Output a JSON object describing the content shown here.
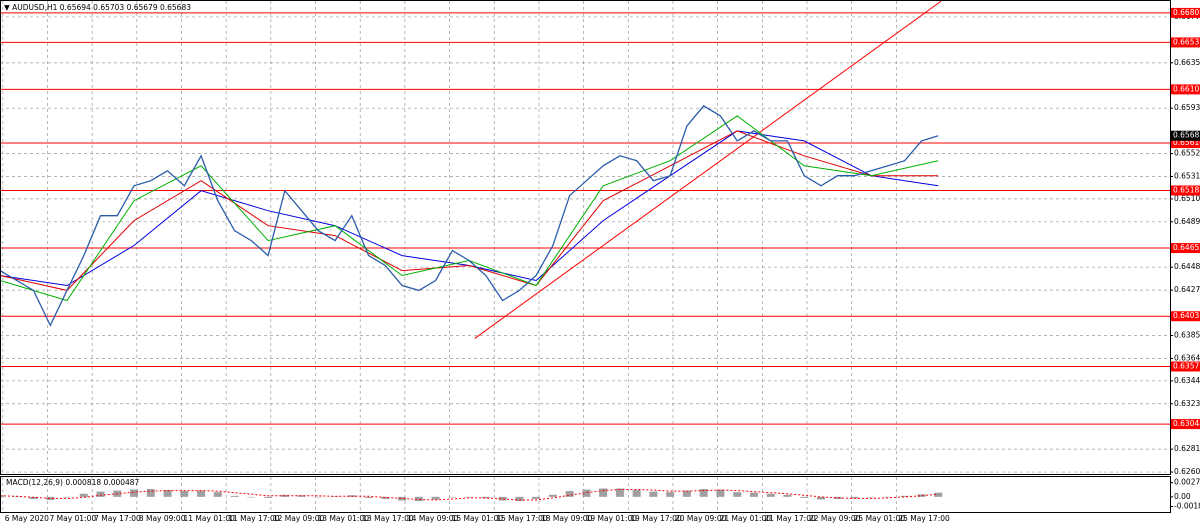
{
  "chart_data": [
    {
      "type": "line",
      "title": "AUDUSD,H1",
      "ohlc": [
        0.65694,
        0.65703,
        0.65679,
        0.65683
      ],
      "x": [
        0,
        6,
        12,
        18,
        24,
        30,
        36,
        42,
        48,
        54,
        60,
        66,
        72,
        78,
        84,
        90,
        96,
        102,
        108,
        114,
        120,
        126,
        132,
        138,
        144,
        150,
        156,
        162,
        168,
        174,
        180,
        186,
        192,
        198,
        204,
        210,
        216,
        222,
        228,
        234,
        240,
        246,
        252,
        258,
        264,
        270,
        276,
        282,
        288,
        294,
        300,
        306,
        312,
        318,
        324,
        330,
        336
      ],
      "series": [
        {
          "color": "#2a5caa",
          "values": [
            0.64449,
            0.64358,
            0.64267,
            0.63947,
            0.64267,
            0.64586,
            0.64951,
            0.64951,
            0.65225,
            0.65271,
            0.65362,
            0.65225,
            0.65499,
            0.65088,
            0.64814,
            0.64723,
            0.64586,
            0.6518,
            0.64997,
            0.64814,
            0.64723,
            0.64951,
            0.64586,
            0.64495,
            0.64312,
            0.64267,
            0.64358,
            0.64632,
            0.64541,
            0.64404,
            0.64175,
            0.64267,
            0.64404,
            0.64678,
            0.65134,
            0.65271,
            0.65408,
            0.65499,
            0.65454,
            0.65271,
            0.65317,
            0.65773,
            0.65956,
            0.65864,
            0.65636,
            0.65727,
            0.65636,
            0.65636,
            0.65317,
            0.65225,
            0.65317,
            0.65317,
            0.65362,
            0.65408,
            0.65454,
            0.65636,
            0.65683
          ]
        },
        {
          "color": "#00b000",
          "x": [
            0,
            24,
            48,
            72,
            96,
            120,
            144,
            168,
            192,
            216,
            240,
            264,
            288,
            312,
            336
          ],
          "values": [
            0.64358,
            0.64175,
            0.65088,
            0.65408,
            0.64723,
            0.6486,
            0.64404,
            0.64541,
            0.64312,
            0.65225,
            0.65454,
            0.65864,
            0.65408,
            0.65317,
            0.65454
          ]
        },
        {
          "color": "#e00000",
          "x": [
            0,
            24,
            48,
            72,
            96,
            120,
            144,
            168,
            192,
            216,
            240,
            264,
            288,
            312,
            336
          ],
          "values": [
            0.64404,
            0.64267,
            0.64906,
            0.65271,
            0.6486,
            0.64769,
            0.64449,
            0.64495,
            0.64312,
            0.65088,
            0.65408,
            0.65727,
            0.65499,
            0.65317,
            0.65317
          ]
        },
        {
          "color": "#0000e0",
          "x": [
            0,
            24,
            48,
            72,
            96,
            120,
            144,
            168,
            192,
            216,
            240,
            264,
            288,
            312,
            336
          ],
          "values": [
            0.64404,
            0.64312,
            0.64678,
            0.6518,
            0.64997,
            0.6486,
            0.64586,
            0.64495,
            0.64358,
            0.64906,
            0.65317,
            0.65727,
            0.65636,
            0.65317,
            0.65225
          ]
        }
      ],
      "trendline": {
        "color": "#ff0000",
        "x": [
          170,
          337
        ],
        "values": [
          0.63828,
          0.66914
        ]
      },
      "levels": [
        0.66807,
        0.66537,
        0.66107,
        0.65616,
        0.65182,
        0.64655,
        0.64031,
        0.63571,
        0.63044
      ],
      "level_color": "#ff0000",
      "current_price": 0.65683,
      "xlim": [
        0,
        419
      ],
      "ylim": [
        0.62578,
        0.66916
      ],
      "xticks": [
        {
          "value": 1,
          "label": "6 May 2020"
        },
        {
          "value": 17,
          "label": "7 May 01:00"
        },
        {
          "value": 33,
          "label": "7 May 17:00"
        },
        {
          "value": 49,
          "label": "8 May 09:00"
        },
        {
          "value": 65,
          "label": "11 May 01:00"
        },
        {
          "value": 81,
          "label": "11 May 17:00"
        },
        {
          "value": 97,
          "label": "12 May 09:00"
        },
        {
          "value": 113,
          "label": "13 May 01:00"
        },
        {
          "value": 129,
          "label": "13 May 17:00"
        },
        {
          "value": 145,
          "label": "14 May 09:00"
        },
        {
          "value": 161,
          "label": "15 May 01:00"
        },
        {
          "value": 177,
          "label": "15 May 17:00"
        },
        {
          "value": 193,
          "label": "18 May 09:00"
        },
        {
          "value": 209,
          "label": "19 May 01:00"
        },
        {
          "value": 225,
          "label": "19 May 17:00"
        },
        {
          "value": 241,
          "label": "20 May 09:00"
        },
        {
          "value": 257,
          "label": "21 May 01:00"
        },
        {
          "value": 273,
          "label": "21 May 17:00"
        },
        {
          "value": 289,
          "label": "22 May 09:00"
        },
        {
          "value": 305,
          "label": "25 May 01:00"
        },
        {
          "value": 321,
          "label": "25 May 17:00"
        }
      ],
      "yticks": [
        {
          "value": 0.6677,
          "label": "0.66770"
        },
        {
          "value": 0.6635,
          "label": "0.66350"
        },
        {
          "value": 0.65935,
          "label": "0.65935"
        },
        {
          "value": 0.6552,
          "label": "0.65520"
        },
        {
          "value": 0.6531,
          "label": "0.65310"
        },
        0.65105,
        0.64895,
        {
          "value": 0.6448,
          "label": "0.64480"
        },
        {
          "value": 0.6427,
          "label": "0.64270"
        },
        0.63855,
        0.63645,
        {
          "value": 0.6344,
          "label": "0.63440"
        },
        {
          "value": 0.6323,
          "label": "0.63230"
        },
        0.62815,
        0.62605
      ],
      "grid": true
    },
    {
      "type": "macd",
      "title": "MACD(12,26,9)",
      "readings": [
        0.000818,
        0.000487
      ],
      "x": [
        0,
        6,
        12,
        18,
        24,
        30,
        36,
        42,
        48,
        54,
        60,
        66,
        72,
        78,
        84,
        90,
        96,
        102,
        108,
        114,
        120,
        126,
        132,
        138,
        144,
        150,
        156,
        162,
        168,
        174,
        180,
        186,
        192,
        198,
        204,
        210,
        216,
        222,
        228,
        234,
        240,
        246,
        252,
        258,
        264,
        270,
        276,
        282,
        288,
        294,
        300,
        306,
        312,
        318,
        324,
        330,
        336
      ],
      "series": [
        {
          "color": "#a0a0a0",
          "values": [
            0.0003,
            0.0001,
            -0.0004,
            -0.0006,
            0,
            0.0006,
            0.001,
            0.0012,
            0.0014,
            0.0015,
            0.0013,
            0.0011,
            0.0012,
            0.0009,
            0.0002,
            -0.0001,
            -0.0002,
            0.0004,
            0.0003,
            0,
            0.0001,
            0.0003,
            -0.0002,
            -0.0004,
            -0.0007,
            -0.0008,
            -0.0005,
            -0.0001,
            0,
            -0.0003,
            -0.0007,
            -0.0008,
            -0.0004,
            0.0004,
            0.0011,
            0.0014,
            0.0016,
            0.0016,
            0.0013,
            0.001,
            0.0009,
            0.0012,
            0.0015,
            0.0014,
            0.0009,
            0.0008,
            0.0006,
            0.0004,
            -0.0002,
            -0.0005,
            -0.0004,
            -0.0003,
            -0.0001,
            0,
            0.0002,
            0.0005,
            0.0008
          ]
        },
        {
          "color": "#ff0000",
          "values": [
            0.0002,
            0.0001,
            -0.0001,
            -0.0003,
            -0.0003,
            -0.0001,
            0.0003,
            0.0006,
            0.0009,
            0.0011,
            0.0012,
            0.0012,
            0.0012,
            0.0011,
            0.0008,
            0.0005,
            0.0002,
            0.0002,
            0.0002,
            0.0002,
            0.0001,
            0.0001,
            0.0001,
            -0.0001,
            -0.0003,
            -0.0005,
            -0.0006,
            -0.0004,
            -0.0002,
            -0.0002,
            -0.0004,
            -0.0006,
            -0.0006,
            -0.0002,
            0.0003,
            0.0008,
            0.0012,
            0.0014,
            0.0014,
            0.0013,
            0.0011,
            0.0011,
            0.0012,
            0.0013,
            0.0012,
            0.001,
            0.0008,
            0.0006,
            0.0003,
            0,
            -0.0002,
            -0.0003,
            -0.0003,
            -0.0002,
            0,
            0.0002,
            0.0005
          ]
        }
      ],
      "ylim": [
        -0.00289,
        0.00379
      ],
      "yticks": [
        0.002708,
        {
          "value": 0,
          "label": "0.00"
        },
        -0.00185
      ]
    }
  ]
}
